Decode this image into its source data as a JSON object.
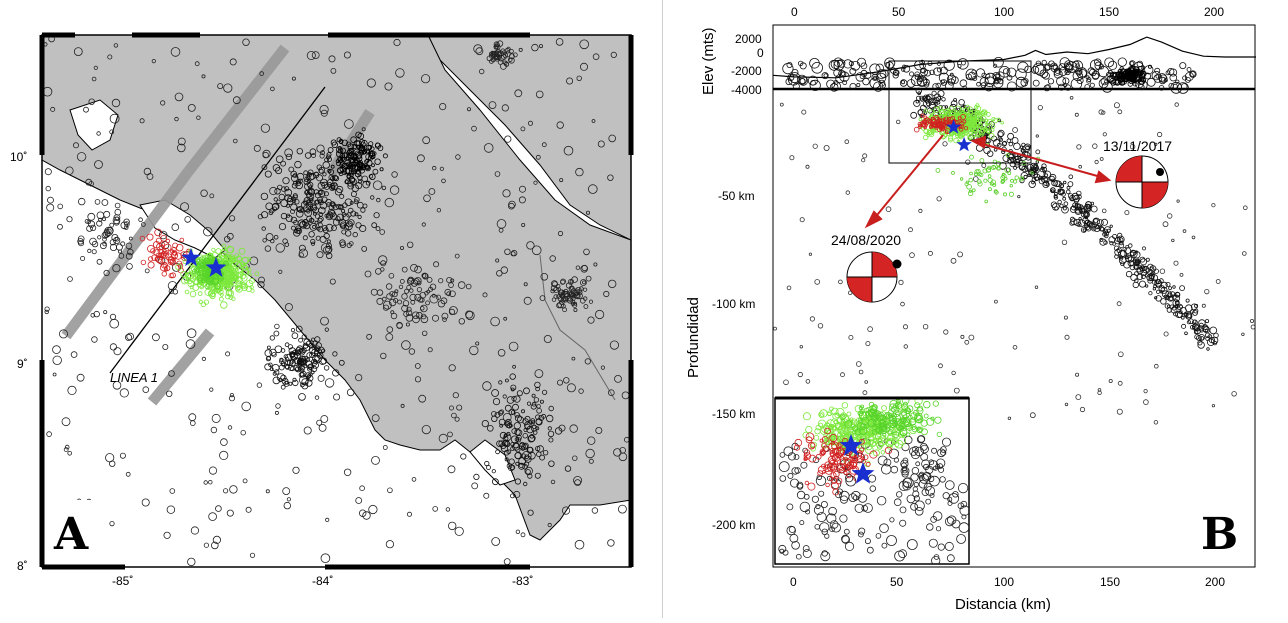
{
  "panel_a": {
    "letter": "A",
    "line_label": "LINEA 1",
    "lat_ticks": [
      "10˚",
      "9˚",
      "8˚"
    ],
    "lon_ticks": [
      "-85˚",
      "-84˚",
      "-83˚"
    ],
    "colors": {
      "land": "#c0c0c0",
      "sea": "#ffffff",
      "swath": "#999999",
      "green": "#7de83c",
      "red": "#d22020",
      "star": "#1a2fd0"
    }
  },
  "panel_b": {
    "letter": "B",
    "ylabel_top": "Elev (mts)",
    "ylabel": "Profundidad",
    "xlabel": "Distancia (km)",
    "elev_ticks": [
      "2000",
      "0",
      "-2000",
      "-4000"
    ],
    "depth_ticks": [
      "-50 km",
      "-100 km",
      "-150 km",
      "-200 km"
    ],
    "x_ticks": [
      "0",
      "50",
      "100",
      "150",
      "200"
    ],
    "event_1_date": "24/08/2020",
    "event_2_date": "13/11/2017"
  },
  "chart_data": [
    {
      "type": "scatter",
      "subtype": "epicenter map",
      "x_axis": "longitude",
      "y_axis": "latitude",
      "xlim": [
        -85.5,
        -82.3
      ],
      "ylim": [
        8,
        10.8
      ],
      "x_ticks": [
        -85,
        -84,
        -83
      ],
      "y_ticks": [
        10,
        9,
        8
      ],
      "series": [],
      "markers": [
        {
          "shape": "star",
          "color": "blue",
          "lon": -84.65,
          "lat": 9.5
        },
        {
          "shape": "star",
          "color": "blue",
          "lon": -84.55,
          "lat": 9.47
        }
      ],
      "annotations": [
        "LINEA 1"
      ]
    },
    {
      "type": "scatter",
      "subtype": "cross-section",
      "xlabel": "Distancia (km)",
      "ylabel": "Profundidad",
      "xlim": [
        -10,
        220
      ],
      "ylim": [
        -220,
        -4
      ],
      "x_ticks": [
        0,
        50,
        100,
        150,
        200
      ],
      "y_ticks": [
        -50,
        -100,
        -150,
        -200
      ],
      "top_profile": {
        "ylabel": "Elev (mts)",
        "ylim": [
          -4000,
          3000
        ],
        "ticks": [
          2000,
          0,
          -2000,
          -4000
        ]
      },
      "markers": [
        {
          "shape": "star",
          "color": "blue",
          "x": 76,
          "depth": -20
        },
        {
          "shape": "star",
          "color": "blue",
          "x": 81,
          "depth": -28
        }
      ],
      "annotations": [
        "24/08/2020",
        "13/11/2017"
      ],
      "grid": false
    }
  ]
}
